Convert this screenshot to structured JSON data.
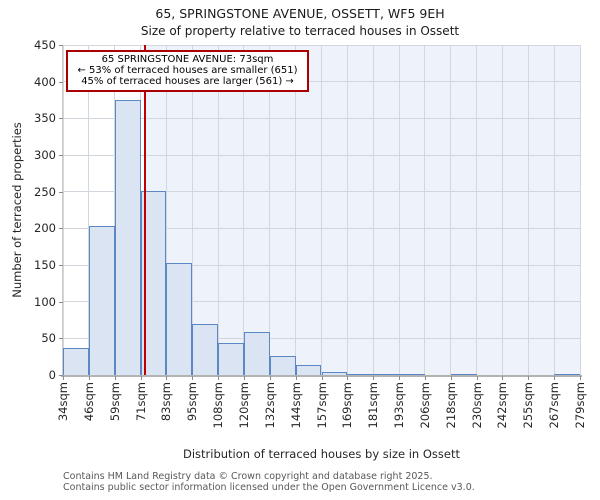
{
  "title": "65, SPRINGSTONE AVENUE, OSSETT, WF5 9EH",
  "subtitle": "Size of property relative to terraced houses in Ossett",
  "annotation": {
    "line1": "65 SPRINGSTONE AVENUE: 73sqm",
    "line2": "← 53% of terraced houses are smaller (651)",
    "line3": "45% of terraced houses are larger (561) →"
  },
  "chart_data": {
    "type": "bar",
    "title": "65, SPRINGSTONE AVENUE, OSSETT, WF5 9EH",
    "subtitle": "Size of property relative to terraced houses in Ossett",
    "xlabel": "Distribution of terraced houses by size in Ossett",
    "ylabel": "Number of terraced properties",
    "ylim": [
      0,
      450
    ],
    "yticks": [
      0,
      50,
      100,
      150,
      200,
      250,
      300,
      350,
      400,
      450
    ],
    "grid": true,
    "bin_edges_sqm": [
      34,
      46,
      59,
      71,
      83,
      95,
      108,
      120,
      132,
      144,
      157,
      169,
      181,
      193,
      206,
      218,
      230,
      242,
      255,
      267,
      279
    ],
    "xtick_labels": [
      "34sqm",
      "46sqm",
      "59sqm",
      "71sqm",
      "83sqm",
      "95sqm",
      "108sqm",
      "120sqm",
      "132sqm",
      "144sqm",
      "157sqm",
      "169sqm",
      "181sqm",
      "193sqm",
      "206sqm",
      "218sqm",
      "230sqm",
      "242sqm",
      "255sqm",
      "267sqm",
      "279sqm"
    ],
    "values": [
      37,
      203,
      375,
      251,
      153,
      69,
      44,
      58,
      26,
      14,
      4,
      2,
      2,
      1,
      0,
      1,
      0,
      0,
      0,
      2
    ],
    "marker_sqm": 73,
    "colors": {
      "bar_fill": "#dbe4f2",
      "bar_edge": "#5c87c4",
      "marker_line": "#c00000",
      "annotation_border": "#aa0000",
      "shade_right_of_marker": "#eef2fb",
      "gridline": "#d2d7de"
    }
  },
  "footer": {
    "line1": "Contains HM Land Registry data © Crown copyright and database right 2025.",
    "line2": "Contains public sector information licensed under the Open Government Licence v3.0."
  }
}
